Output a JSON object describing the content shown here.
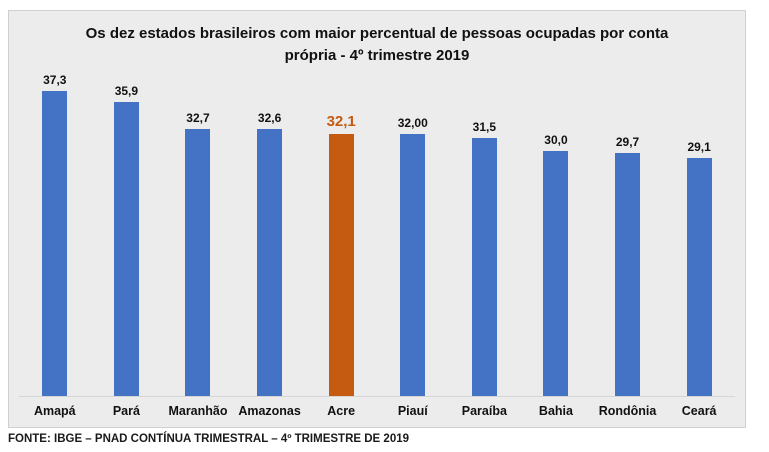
{
  "chart_data": {
    "type": "bar",
    "title": "Os dez estados brasileiros com maior percentual de pessoas ocupadas por conta própria - 4º trimestre 2019",
    "categories": [
      "Amapá",
      "Pará",
      "Maranhão",
      "Amazonas",
      "Acre",
      "Piauí",
      "Paraíba",
      "Bahia",
      "Rondônia",
      "Ceará"
    ],
    "values": [
      37.3,
      35.9,
      32.7,
      32.6,
      32.1,
      32.0,
      31.5,
      30.0,
      29.7,
      29.1
    ],
    "value_labels": [
      "37,3",
      "35,9",
      "32,7",
      "32,6",
      "32,1",
      "32,00",
      "31,5",
      "30,0",
      "29,7",
      "29,1"
    ],
    "highlight_index": 4,
    "bar_color": "#4472C4",
    "highlight_color": "#C55A11",
    "xlabel": "",
    "ylabel": "",
    "ylim": [
      0,
      40
    ],
    "grid": false,
    "legend": false,
    "background_color": "#ECECEC"
  },
  "footer": {
    "source": "FONTE: IBGE – PNAD CONTÍNUA TRIMESTRAL – 4º TRIMESTRE DE 2019"
  }
}
